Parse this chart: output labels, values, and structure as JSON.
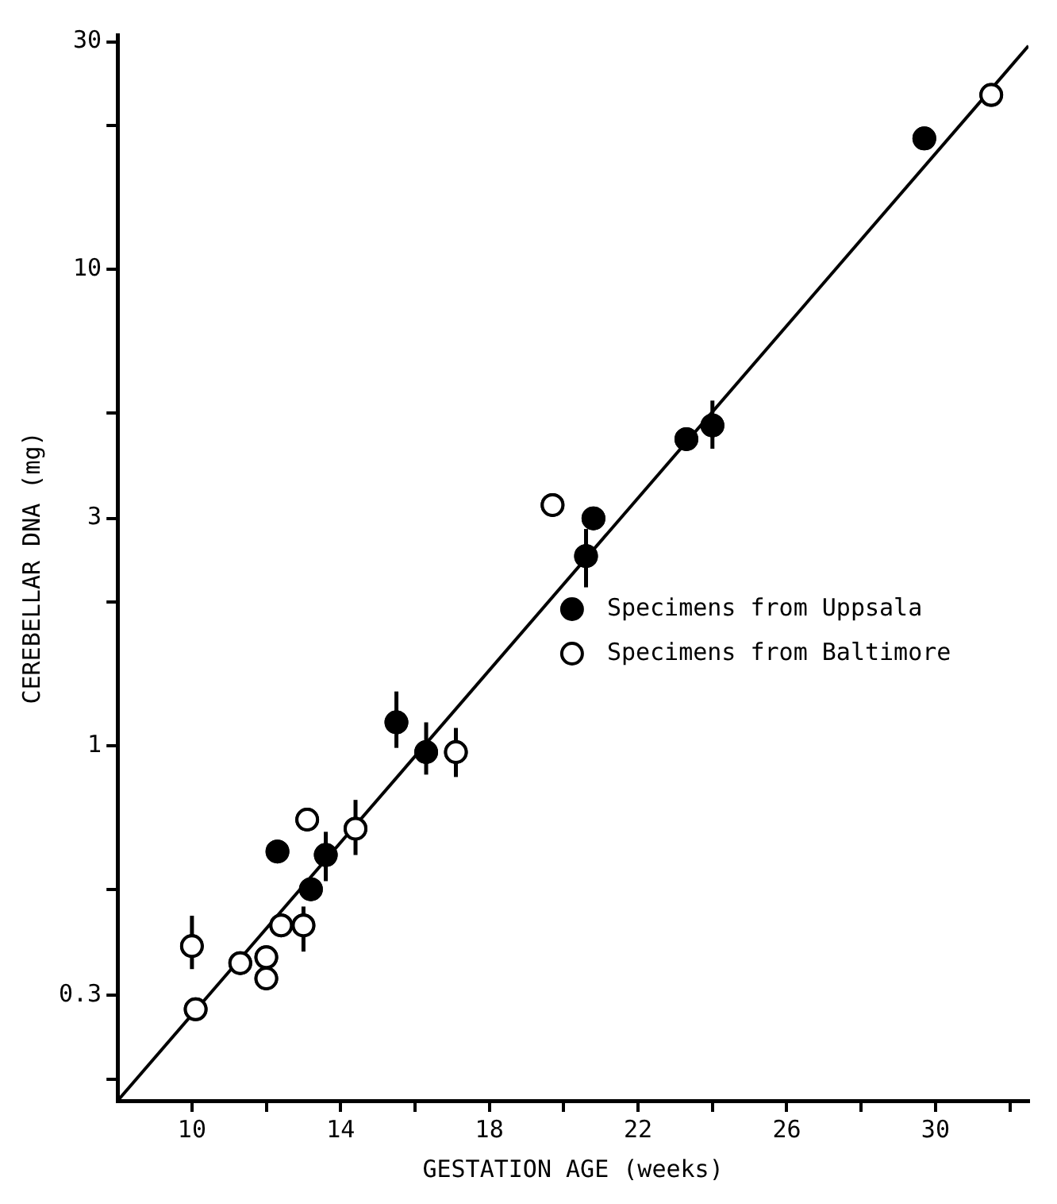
{
  "chart_data": {
    "type": "scatter",
    "xlabel": "GESTATION AGE (weeks)",
    "ylabel": "CEREBELLAR DNA (mg)",
    "log": "y",
    "grid": false,
    "legend": "right",
    "marker": "circle",
    "xlim": [
      8,
      32.5
    ],
    "xticks": [
      10,
      {
        "value": 12,
        "label": null
      },
      14,
      {
        "value": 16,
        "label": null
      },
      18,
      {
        "value": 20,
        "label": null
      },
      22,
      {
        "value": 24,
        "label": null
      },
      26,
      {
        "value": 28,
        "label": null
      },
      30,
      {
        "value": 32,
        "label": null
      }
    ],
    "ylim": [
      0.18,
      31
    ],
    "yticks": [
      {
        "value": 0.2,
        "label": null
      },
      0.3,
      {
        "value": 0.5,
        "label": null
      },
      1,
      {
        "value": 2,
        "label": null
      },
      3,
      {
        "value": 5,
        "label": null
      },
      10,
      {
        "value": 20,
        "label": null
      },
      30
    ],
    "series": [
      {
        "type": "line",
        "color": "#000000",
        "marker": "none",
        "line_style": "solid",
        "x": [
          8,
          32.5
        ],
        "values": [
          0.18,
          29.4
        ]
      },
      {
        "name": "Specimens from Uppsala",
        "color": "#000000",
        "x": [
          29.7,
          20.8,
          20.6,
          15.5,
          16.3,
          12.3,
          13.6,
          13.2,
          23.3,
          24.0
        ],
        "values": [
          18.8,
          3.0,
          2.5,
          1.12,
          0.97,
          0.6,
          0.59,
          0.5,
          4.4,
          4.7
        ],
        "errors": [
          null,
          null,
          [
            2.15,
            2.85
          ],
          [
            0.99,
            1.3
          ],
          [
            0.87,
            1.12
          ],
          null,
          [
            0.52,
            0.66
          ],
          null,
          null,
          [
            4.2,
            5.3
          ]
        ]
      },
      {
        "name": "Specimens from Baltimore",
        "color": "#ffffff",
        "x": [
          31.5,
          19.7,
          17.1,
          13.1,
          14.4,
          12.4,
          13.0,
          10.0,
          11.3,
          12.0,
          12.0,
          10.1
        ],
        "values": [
          23.2,
          3.2,
          0.97,
          0.7,
          0.67,
          0.42,
          0.42,
          0.38,
          0.35,
          0.36,
          0.325,
          0.28
        ],
        "errors": [
          null,
          null,
          [
            0.86,
            1.09
          ],
          null,
          [
            0.59,
            0.77
          ],
          null,
          [
            0.37,
            0.46
          ],
          [
            0.34,
            0.44
          ],
          null,
          null,
          null,
          null
        ]
      }
    ]
  }
}
